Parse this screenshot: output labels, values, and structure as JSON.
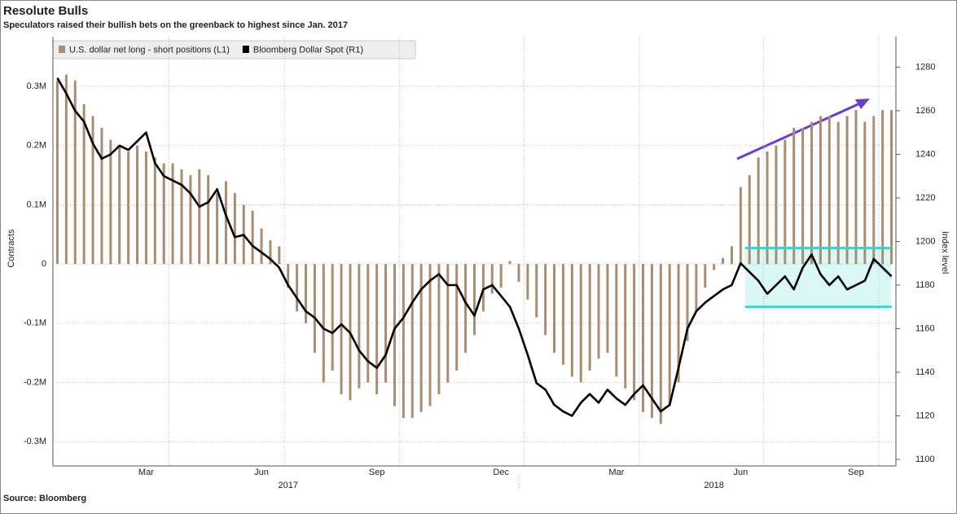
{
  "chart_data": {
    "type": "bar_line",
    "title": "Resolute Bulls",
    "subtitle": "Speculators raised their bullish bets on the greenback to highest since Jan. 2017",
    "source": "Source: Bloomberg",
    "ylabel": "Contracts",
    "y2label": "Index level",
    "categories": [
      null,
      null,
      null,
      null,
      null,
      null,
      null,
      null,
      null,
      null,
      "Mar",
      null,
      null,
      null,
      null,
      null,
      null,
      null,
      null,
      null,
      null,
      null,
      null,
      "Jun",
      null,
      null,
      null,
      null,
      null,
      null,
      null,
      null,
      null,
      null,
      null,
      null,
      "Sep",
      null,
      null,
      null,
      null,
      null,
      null,
      null,
      null,
      null,
      null,
      null,
      null,
      null,
      "Dec",
      null,
      null,
      null,
      null,
      null,
      null,
      null,
      null,
      null,
      null,
      null,
      null,
      "Mar",
      null,
      null,
      null,
      null,
      null,
      null,
      null,
      null,
      null,
      null,
      null,
      null,
      null,
      "Jun",
      null,
      null,
      null,
      null,
      null,
      null,
      null,
      null,
      null,
      null,
      null,
      null,
      "Sep",
      null,
      null,
      null,
      null
    ],
    "categories_year": [
      null,
      null,
      null,
      null,
      null,
      null,
      null,
      null,
      null,
      null,
      null,
      null,
      null,
      null,
      null,
      null,
      null,
      null,
      null,
      null,
      null,
      null,
      null,
      null,
      null,
      null,
      "2017",
      null,
      null,
      null,
      null,
      null,
      null,
      null,
      null,
      null,
      null,
      null,
      null,
      null,
      null,
      null,
      null,
      null,
      null,
      null,
      null,
      null,
      null,
      null,
      null,
      null,
      null,
      null,
      null,
      null,
      null,
      null,
      null,
      null,
      null,
      null,
      null,
      null,
      null,
      null,
      null,
      null,
      null,
      null,
      null,
      null,
      null,
      null,
      "2018",
      null,
      null,
      null,
      null,
      null,
      null,
      null,
      null,
      null,
      null,
      null,
      null,
      null,
      null,
      null,
      null,
      null,
      null,
      null,
      null
    ],
    "series": [
      {
        "name": "U.S. dollar net long - short positions (L1)",
        "color": "#a98d70",
        "type": "bar",
        "axis": "y",
        "values": [
          310000,
          320000,
          310000,
          270000,
          250000,
          230000,
          210000,
          200000,
          190000,
          200000,
          190000,
          180000,
          170000,
          170000,
          160000,
          150000,
          160000,
          150000,
          120000,
          140000,
          120000,
          100000,
          90000,
          60000,
          40000,
          30000,
          -40000,
          -80000,
          -100000,
          -150000,
          -200000,
          -180000,
          -220000,
          -230000,
          -210000,
          -200000,
          -220000,
          -200000,
          -240000,
          -260000,
          -260000,
          -250000,
          -240000,
          -220000,
          -200000,
          -180000,
          -150000,
          -120000,
          -80000,
          -50000,
          -40000,
          5000,
          -30000,
          -60000,
          -90000,
          -120000,
          -150000,
          -170000,
          -190000,
          -200000,
          -180000,
          -160000,
          -150000,
          -190000,
          -210000,
          -230000,
          -250000,
          -260000,
          -270000,
          -240000,
          -200000,
          -130000,
          -80000,
          -40000,
          -10000,
          10000,
          30000,
          130000,
          150000,
          180000,
          190000,
          200000,
          210000,
          230000,
          230000,
          240000,
          250000,
          250000,
          240000,
          250000,
          260000,
          240000,
          250000,
          260000,
          260000
        ]
      },
      {
        "name": "Bloomberg Dollar Spot  (R1)",
        "color": "#000000",
        "type": "line",
        "axis": "y2",
        "values": [
          1275,
          1268,
          1260,
          1255,
          1245,
          1238,
          1240,
          1244,
          1242,
          1246,
          1250,
          1236,
          1230,
          1228,
          1226,
          1222,
          1216,
          1218,
          1224,
          1212,
          1202,
          1203,
          1198,
          1195,
          1192,
          1188,
          1180,
          1174,
          1168,
          1165,
          1160,
          1158,
          1162,
          1158,
          1150,
          1145,
          1142,
          1148,
          1160,
          1165,
          1172,
          1178,
          1182,
          1185,
          1180,
          1180,
          1172,
          1166,
          1178,
          1180,
          1175,
          1170,
          1160,
          1148,
          1135,
          1132,
          1125,
          1122,
          1120,
          1126,
          1130,
          1126,
          1132,
          1128,
          1125,
          1130,
          1134,
          1128,
          1122,
          1125,
          1142,
          1160,
          1168,
          1172,
          1175,
          1178,
          1180,
          1190,
          1186,
          1182,
          1176,
          1180,
          1184,
          1178,
          1188,
          1194,
          1185,
          1180,
          1184,
          1178,
          1180,
          1182,
          1192,
          1188,
          1184
        ]
      }
    ],
    "ylim": [
      -341000,
      384000
    ],
    "yticks": [
      {
        "value": -300000,
        "label": "-0.3M"
      },
      {
        "value": -200000,
        "label": "-0.2M"
      },
      {
        "value": -100000,
        "label": "-0.1M"
      },
      0,
      {
        "value": 100000,
        "label": "0.1M"
      },
      {
        "value": 200000,
        "label": "0.2M"
      },
      {
        "value": 300000,
        "label": "0.3M"
      }
    ],
    "y2lim": [
      1097,
      1294
    ],
    "y2ticks": [
      1100,
      1120,
      1140,
      1160,
      1180,
      1200,
      1220,
      1240,
      1260,
      1280
    ],
    "highlight": {
      "from": 78,
      "to": 94,
      "low": 1170,
      "high": 1197,
      "color": "#2fd9cc"
    },
    "grid": true
  }
}
